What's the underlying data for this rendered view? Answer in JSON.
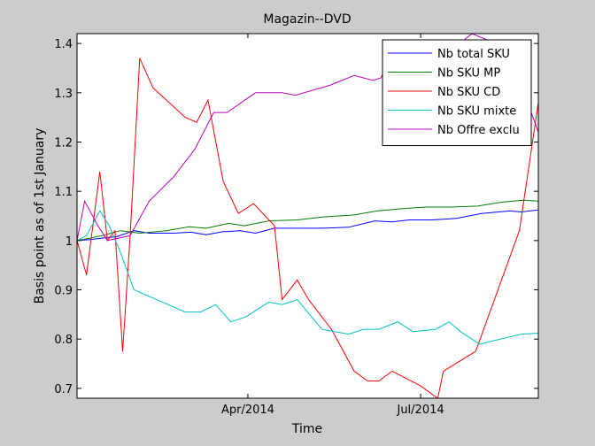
{
  "chart_data": {
    "type": "line",
    "title": "Magazin--DVD",
    "xlabel": "Time",
    "ylabel": "Basis point as of 1st January",
    "x_type": "date",
    "xlim": [
      "2014-01-01",
      "2014-09-01"
    ],
    "ylim": [
      0.68,
      1.42
    ],
    "x_ticks": [
      {
        "x": "2014-04-01",
        "label": "Apr/2014"
      },
      {
        "x": "2014-07-01",
        "label": "Jul/2014"
      }
    ],
    "y_ticks": [
      0.7,
      0.8,
      0.9,
      1,
      1.1,
      1.2,
      1.3,
      1.4
    ],
    "y_tick_labels": [
      "0.7",
      "0.8",
      "0.9",
      "1",
      "1.1",
      "1.2",
      "1.3",
      "1.4"
    ],
    "grid": false,
    "legend_position": "top-right",
    "series": [
      {
        "name": "Nb total SKU",
        "color": "#0000ff",
        "points": [
          [
            "2014-01-01",
            1.0
          ],
          [
            "2014-01-08",
            1.002
          ],
          [
            "2014-01-14",
            1.005
          ],
          [
            "2014-01-22",
            1.008
          ],
          [
            "2014-01-31",
            1.02
          ],
          [
            "2014-02-08",
            1.015
          ],
          [
            "2014-02-21",
            1.015
          ],
          [
            "2014-03-02",
            1.017
          ],
          [
            "2014-03-10",
            1.012
          ],
          [
            "2014-03-19",
            1.018
          ],
          [
            "2014-03-28",
            1.02
          ],
          [
            "2014-04-05",
            1.015
          ],
          [
            "2014-04-15",
            1.025
          ],
          [
            "2014-04-27",
            1.025
          ],
          [
            "2014-05-10",
            1.025
          ],
          [
            "2014-05-24",
            1.027
          ],
          [
            "2014-06-07",
            1.04
          ],
          [
            "2014-06-16",
            1.038
          ],
          [
            "2014-06-25",
            1.042
          ],
          [
            "2014-07-07",
            1.042
          ],
          [
            "2014-07-20",
            1.045
          ],
          [
            "2014-08-02",
            1.055
          ],
          [
            "2014-08-17",
            1.06
          ],
          [
            "2014-08-23",
            1.058
          ],
          [
            "2014-09-01",
            1.062
          ]
        ]
      },
      {
        "name": "Nb SKU MP",
        "color": "#008000",
        "points": [
          [
            "2014-01-01",
            1.0
          ],
          [
            "2014-01-08",
            1.005
          ],
          [
            "2014-01-14",
            1.01
          ],
          [
            "2014-01-24",
            1.02
          ],
          [
            "2014-02-03",
            1.015
          ],
          [
            "2014-02-17",
            1.02
          ],
          [
            "2014-03-01",
            1.028
          ],
          [
            "2014-03-10",
            1.025
          ],
          [
            "2014-03-22",
            1.035
          ],
          [
            "2014-03-30",
            1.03
          ],
          [
            "2014-04-12",
            1.04
          ],
          [
            "2014-04-27",
            1.042
          ],
          [
            "2014-05-11",
            1.048
          ],
          [
            "2014-05-27",
            1.052
          ],
          [
            "2014-06-08",
            1.06
          ],
          [
            "2014-06-22",
            1.065
          ],
          [
            "2014-07-04",
            1.068
          ],
          [
            "2014-07-17",
            1.068
          ],
          [
            "2014-07-31",
            1.07
          ],
          [
            "2014-08-13",
            1.078
          ],
          [
            "2014-08-24",
            1.082
          ],
          [
            "2014-09-01",
            1.08
          ]
        ]
      },
      {
        "name": "Nb SKU CD",
        "color": "#ff0000",
        "points": [
          [
            "2014-01-01",
            1.0
          ],
          [
            "2014-01-06",
            0.93
          ],
          [
            "2014-01-13",
            1.14
          ],
          [
            "2014-01-17",
            1.0
          ],
          [
            "2014-01-21",
            1.02
          ],
          [
            "2014-01-25",
            0.775
          ],
          [
            "2014-01-29",
            1.01
          ],
          [
            "2014-02-03",
            1.37
          ],
          [
            "2014-02-10",
            1.31
          ],
          [
            "2014-02-27",
            1.25
          ],
          [
            "2014-03-05",
            1.24
          ],
          [
            "2014-03-11",
            1.285
          ],
          [
            "2014-03-19",
            1.12
          ],
          [
            "2014-03-27",
            1.055
          ],
          [
            "2014-04-04",
            1.075
          ],
          [
            "2014-04-15",
            1.03
          ],
          [
            "2014-04-19",
            0.88
          ],
          [
            "2014-04-27",
            0.92
          ],
          [
            "2014-05-03",
            0.88
          ],
          [
            "2014-05-15",
            0.82
          ],
          [
            "2014-05-27",
            0.735
          ],
          [
            "2014-06-03",
            0.715
          ],
          [
            "2014-06-09",
            0.715
          ],
          [
            "2014-06-16",
            0.735
          ],
          [
            "2014-07-01",
            0.705
          ],
          [
            "2014-07-10",
            0.68
          ],
          [
            "2014-07-13",
            0.735
          ],
          [
            "2014-07-30",
            0.775
          ],
          [
            "2014-08-22",
            1.02
          ],
          [
            "2014-09-01",
            1.28
          ]
        ]
      },
      {
        "name": "Nb SKU mixte",
        "color": "#00bfbf",
        "points": [
          [
            "2014-01-01",
            1.0
          ],
          [
            "2014-01-06",
            1.01
          ],
          [
            "2014-01-13",
            1.06
          ],
          [
            "2014-01-18",
            1.03
          ],
          [
            "2014-01-24",
            0.975
          ],
          [
            "2014-01-31",
            0.9
          ],
          [
            "2014-02-12",
            0.88
          ],
          [
            "2014-02-27",
            0.855
          ],
          [
            "2014-03-07",
            0.855
          ],
          [
            "2014-03-15",
            0.87
          ],
          [
            "2014-03-23",
            0.835
          ],
          [
            "2014-03-31",
            0.845
          ],
          [
            "2014-04-12",
            0.875
          ],
          [
            "2014-04-19",
            0.87
          ],
          [
            "2014-04-27",
            0.88
          ],
          [
            "2014-05-10",
            0.82
          ],
          [
            "2014-05-24",
            0.81
          ],
          [
            "2014-06-01",
            0.82
          ],
          [
            "2014-06-09",
            0.82
          ],
          [
            "2014-06-19",
            0.835
          ],
          [
            "2014-06-27",
            0.815
          ],
          [
            "2014-07-09",
            0.82
          ],
          [
            "2014-07-16",
            0.835
          ],
          [
            "2014-07-22",
            0.815
          ],
          [
            "2014-08-01",
            0.79
          ],
          [
            "2014-08-23",
            0.81
          ],
          [
            "2014-09-01",
            0.812
          ]
        ]
      },
      {
        "name": "Nb Offre exclu",
        "color": "#bf00bf",
        "points": [
          [
            "2014-01-01",
            1.0
          ],
          [
            "2014-01-05",
            1.08
          ],
          [
            "2014-01-12",
            1.03
          ],
          [
            "2014-01-17",
            1.0
          ],
          [
            "2014-01-29",
            1.01
          ],
          [
            "2014-02-08",
            1.08
          ],
          [
            "2014-02-21",
            1.13
          ],
          [
            "2014-03-04",
            1.185
          ],
          [
            "2014-03-14",
            1.26
          ],
          [
            "2014-03-21",
            1.26
          ],
          [
            "2014-04-05",
            1.3
          ],
          [
            "2014-04-19",
            1.3
          ],
          [
            "2014-04-26",
            1.295
          ],
          [
            "2014-05-14",
            1.315
          ],
          [
            "2014-05-27",
            1.335
          ],
          [
            "2014-06-06",
            1.325
          ],
          [
            "2014-06-10",
            1.33
          ],
          [
            "2014-06-18",
            1.385
          ],
          [
            "2014-06-26",
            1.34
          ],
          [
            "2014-07-12",
            1.37
          ],
          [
            "2014-07-28",
            1.42
          ],
          [
            "2014-08-16",
            1.39
          ],
          [
            "2014-09-01",
            1.22
          ]
        ]
      }
    ]
  }
}
